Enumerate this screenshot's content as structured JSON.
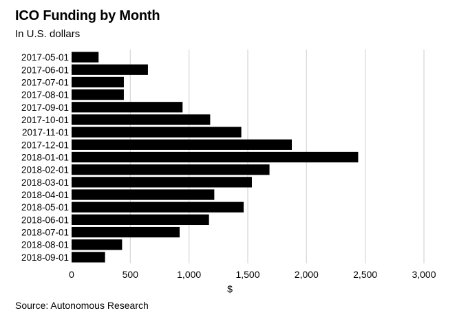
{
  "header": {
    "title": "ICO Funding by Month",
    "subtitle": "In U.S. dollars"
  },
  "footer": {
    "source": "Source: Autonomous Research"
  },
  "colors": {
    "bar": "#000000",
    "grid": "#d9d9d9",
    "background": "#ffffff"
  },
  "chart_data": {
    "type": "bar",
    "orientation": "horizontal",
    "title": "ICO Funding by Month",
    "subtitle": "In U.S. dollars",
    "xlabel": "$",
    "ylabel": "",
    "xlim": [
      0,
      3000
    ],
    "xticks": [
      0,
      500,
      1000,
      1500,
      2000,
      2500,
      3000
    ],
    "xtick_labels": [
      "0",
      "500",
      "1,000",
      "1,500",
      "2,000",
      "2,500",
      "3,000"
    ],
    "grid": true,
    "legend": "none",
    "categories": [
      "2017-05-01",
      "2017-06-01",
      "2017-07-01",
      "2017-08-01",
      "2017-09-01",
      "2017-10-01",
      "2017-11-01",
      "2017-12-01",
      "2018-01-01",
      "2018-02-01",
      "2018-03-01",
      "2018-04-01",
      "2018-05-01",
      "2018-06-01",
      "2018-07-01",
      "2018-08-01",
      "2018-09-01"
    ],
    "values": [
      230,
      650,
      445,
      445,
      945,
      1180,
      1445,
      1875,
      2440,
      1685,
      1535,
      1215,
      1465,
      1170,
      920,
      430,
      285
    ]
  }
}
